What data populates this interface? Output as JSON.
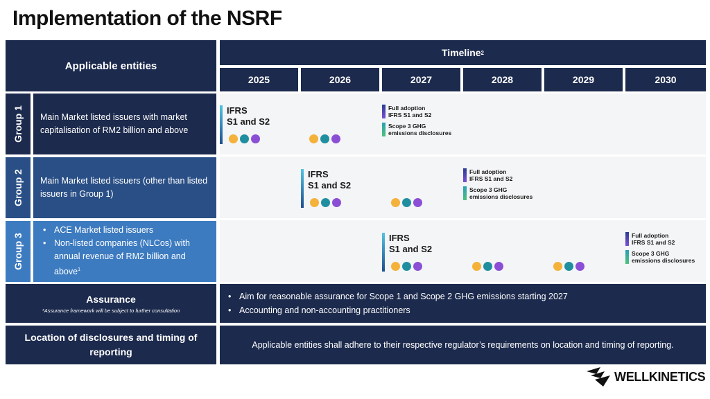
{
  "title": "Implementation of the NSRF",
  "header": {
    "entities": "Applicable entities",
    "timeline": "Timeline",
    "timeline_note": "2",
    "years": [
      "2025",
      "2026",
      "2027",
      "2028",
      "2029",
      "2030"
    ]
  },
  "groups": [
    {
      "label": "Group 1",
      "description": "Main Market listed issuers with market capitalisation of RM2 billion and above"
    },
    {
      "label": "Group 2",
      "description": "Main Market listed issuers (other than listed issuers in Group 1)"
    },
    {
      "label": "Group 3",
      "bullets": [
        "ACE Market listed issuers",
        "Non-listed companies (NLCos) with annual revenue of RM2 billion and above"
      ],
      "bullet_note": "1"
    }
  ],
  "milestones": {
    "ifrs_line1": "IFRS",
    "ifrs_line2": "S1 and S2",
    "full_adoption_line1": "Full adoption",
    "full_adoption_line2": "IFRS S1 and S2",
    "scope3_line1": "Scope 3 GHG",
    "scope3_line2": "emissions disclosures"
  },
  "colors": {
    "navy": "#1c2a4d",
    "mid_blue": "#2a4f86",
    "light_blue": "#3d7bc0",
    "dot_yellow": "#f4b23a",
    "dot_teal": "#1f8fa0",
    "dot_purple": "#8b4fd6"
  },
  "assurance": {
    "heading": "Assurance",
    "note": "*Assurance framework will be subject to further consultation",
    "bullets": [
      "Aim for reasonable assurance for Scope 1 and Scope 2 GHG emissions starting 2027",
      "Accounting and non-accounting practitioners"
    ]
  },
  "location": {
    "heading": "Location of disclosures and timing of reporting",
    "text": "Applicable entities shall adhere to their respective regulator’s requirements on location and timing of reporting."
  },
  "brand": {
    "name": "WELLKINETICS",
    "logo_icon": "wellkinetics-logo-icon"
  }
}
